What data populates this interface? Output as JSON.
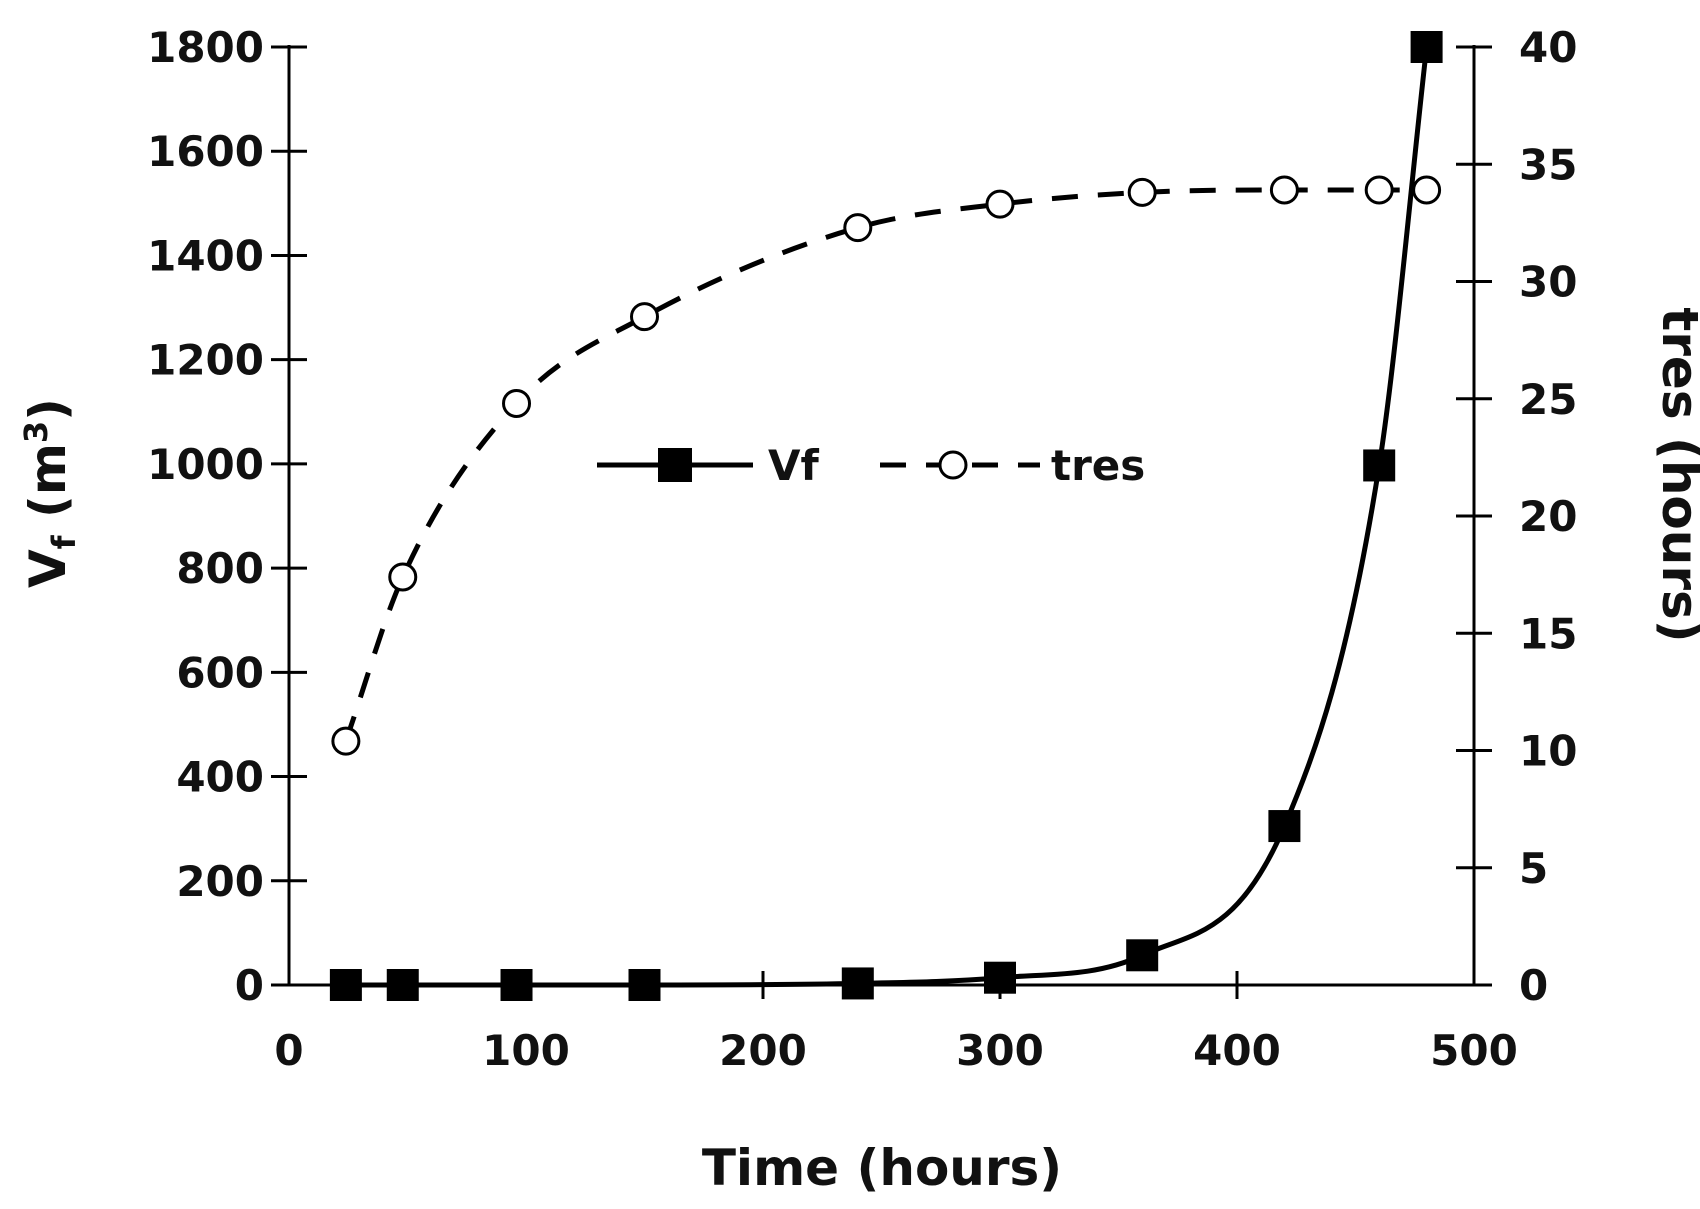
{
  "chart_data": {
    "type": "line",
    "title": "",
    "xlabel": "Time (hours)",
    "ylabel_main": "V",
    "ylabel_sub": "f",
    "ylabel_unit_pre": " (m",
    "ylabel_unit_sup": "3",
    "ylabel_unit_post": ")",
    "y2label": "tres (hours)",
    "xlim": [
      0,
      500
    ],
    "ylim": [
      0,
      1800
    ],
    "y2lim": [
      0,
      40
    ],
    "x_ticks": [
      "0",
      "100",
      "200",
      "300",
      "400",
      "500"
    ],
    "y_ticks": [
      "0",
      "200",
      "400",
      "600",
      "800",
      "1000",
      "1200",
      "1400",
      "1600",
      "1800"
    ],
    "y2_ticks": [
      "0",
      "5",
      "10",
      "15",
      "20",
      "25",
      "30",
      "35",
      "40"
    ],
    "legend_placement": "center",
    "grid": false,
    "series": [
      {
        "name": "Vf",
        "axis": "left",
        "style": "solid",
        "marker": "filled-square",
        "color": "#000000",
        "x": [
          24,
          48,
          96,
          150,
          240,
          300,
          360,
          420,
          460,
          480
        ],
        "y": [
          0,
          0,
          0,
          0,
          3,
          14,
          57,
          305,
          997,
          1800
        ]
      },
      {
        "name": "tres",
        "axis": "right",
        "style": "dashed",
        "marker": "open-circle",
        "color": "#000000",
        "x": [
          24,
          48,
          96,
          150,
          240,
          300,
          360,
          420,
          460,
          480
        ],
        "y": [
          10.4,
          17.4,
          24.8,
          28.5,
          32.3,
          33.3,
          33.8,
          33.9,
          33.9,
          33.9
        ]
      }
    ]
  }
}
